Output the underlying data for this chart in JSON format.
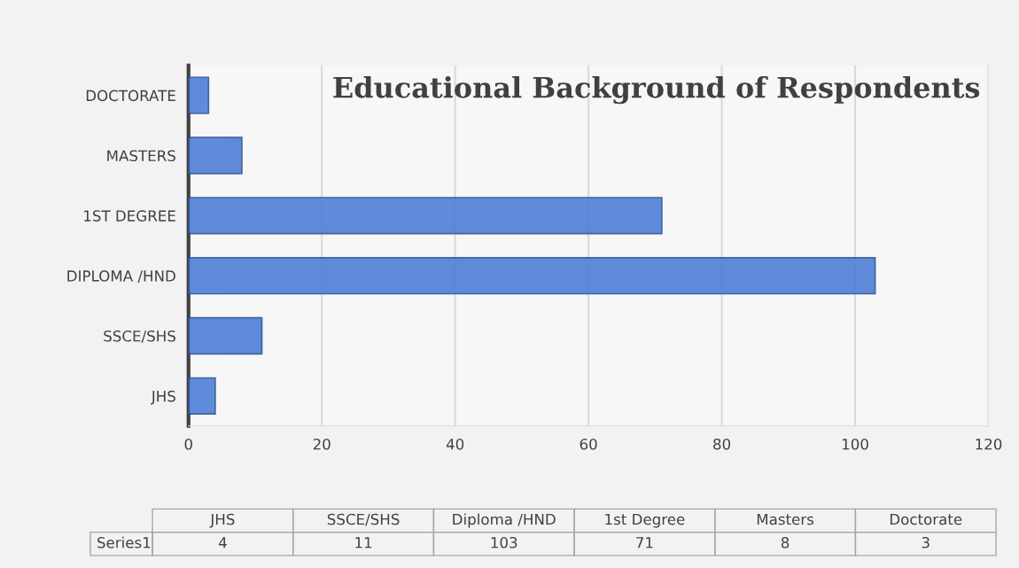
{
  "chart_data": {
    "type": "bar",
    "orientation": "horizontal",
    "title": "Educational Background of Respondents",
    "categories": [
      "DOCTORATE",
      "MASTERS",
      "1ST DEGREE",
      "DIPLOMA /HND",
      "SSCE/SHS",
      "JHS"
    ],
    "series": [
      {
        "name": "Series1",
        "color": "#4f7fd6",
        "values": [
          3,
          8,
          71,
          103,
          11,
          4
        ]
      }
    ],
    "xlim": [
      0,
      120
    ],
    "xticks": [
      0,
      20,
      40,
      60,
      80,
      100,
      120
    ],
    "grid": "x",
    "legend": false,
    "annotations": [
      "JHS",
      "SSCE/SHS",
      "Diploma /HND",
      "1st Degree",
      "Masters",
      "Doctorate",
      "4",
      "11",
      "103",
      "71",
      "8",
      "3"
    ]
  }
}
